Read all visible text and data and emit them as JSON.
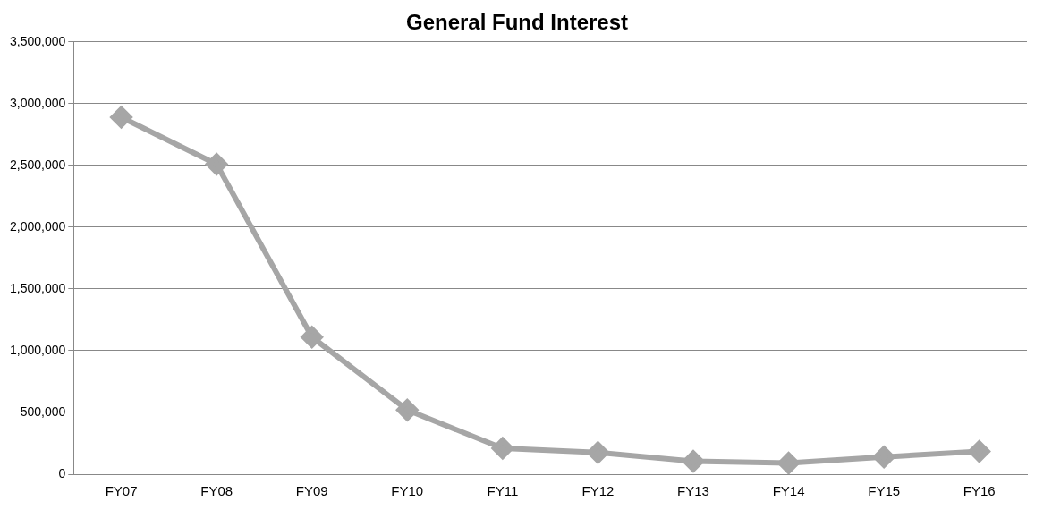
{
  "chart_data": {
    "type": "line",
    "title": "General Fund Interest",
    "categories": [
      "FY07",
      "FY08",
      "FY09",
      "FY10",
      "FY11",
      "FY12",
      "FY13",
      "FY14",
      "FY15",
      "FY16"
    ],
    "series": [
      {
        "color": "#a6a6a6",
        "values": [
          2890000,
          2510000,
          1110000,
          520000,
          210000,
          175000,
          105000,
          90000,
          140000,
          185000
        ]
      }
    ],
    "ylim": [
      0,
      3500000
    ],
    "yticks": [
      {
        "value": 0,
        "label": "0"
      },
      {
        "value": 500000,
        "label": "500,000"
      },
      {
        "value": 1000000,
        "label": "1,000,000"
      },
      {
        "value": 1500000,
        "label": "1,500,000"
      },
      {
        "value": 2000000,
        "label": "2,000,000"
      },
      {
        "value": 2500000,
        "label": "2,500,000"
      },
      {
        "value": 3000000,
        "label": "3,000,000"
      },
      {
        "value": 3500000,
        "label": "3,500,000"
      }
    ],
    "grid": "y",
    "legend": false,
    "marker": "diamond",
    "line_style": "solid"
  }
}
